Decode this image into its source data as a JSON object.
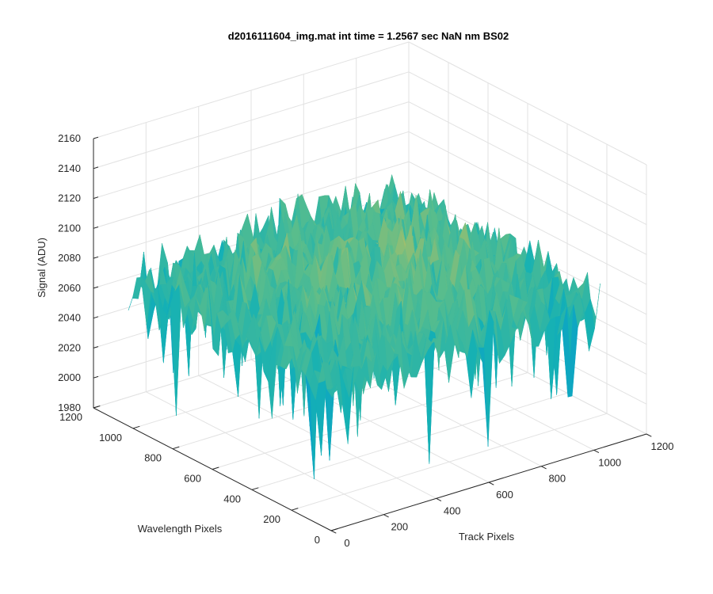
{
  "chart_data": {
    "type": "surface",
    "title": "d2016111604_img.mat int time = 1.2567 sec  NaN nm BS02",
    "xlabel": "Track Pixels",
    "ylabel": "Wavelength Pixels",
    "zlabel": "Signal (ADU)",
    "xlim": [
      0,
      1200
    ],
    "ylim": [
      0,
      1200
    ],
    "zlim": [
      1980,
      2160
    ],
    "x_ticks": [
      "0",
      "200",
      "400",
      "600",
      "800",
      "1000",
      "1200"
    ],
    "y_ticks": [
      "0",
      "200",
      "400",
      "600",
      "800",
      "1000",
      "1200"
    ],
    "z_ticks": [
      "1980",
      "2000",
      "2020",
      "2040",
      "2060",
      "2080",
      "2100",
      "2120",
      "2140",
      "2160"
    ],
    "grid": true,
    "colormap": "parula",
    "surface_summary": {
      "x_range": [
        0,
        1024
      ],
      "y_range": [
        0,
        1024
      ],
      "z_mean": 2075,
      "z_min": 1990,
      "z_max": 2150
    }
  }
}
